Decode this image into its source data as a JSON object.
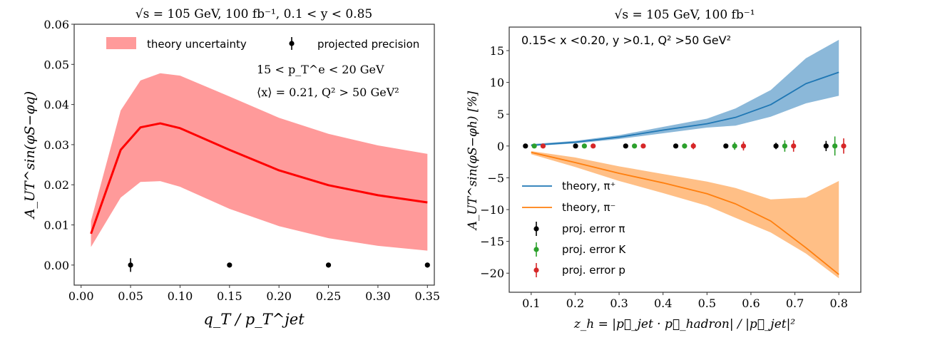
{
  "chart_data": [
    {
      "type": "line",
      "title": "√s = 105 GeV, 100 fb⁻¹, 0.1 < y < 0.85",
      "xlabel": "q_T / p_T^jet",
      "ylabel": "A_UT^sin(φS−φq)",
      "xlim": [
        -0.007,
        0.357
      ],
      "ylim": [
        -0.005,
        0.06
      ],
      "xticks": [
        0.0,
        0.05,
        0.1,
        0.15,
        0.2,
        0.25,
        0.3,
        0.35
      ],
      "xtick_labels": [
        "0.00",
        "0.05",
        "0.10",
        "0.15",
        "0.20",
        "0.25",
        "0.30",
        "0.35"
      ],
      "yticks": [
        0.0,
        0.01,
        0.02,
        0.03,
        0.04,
        0.05,
        0.06
      ],
      "ytick_labels": [
        "0.00",
        "0.01",
        "0.02",
        "0.03",
        "0.04",
        "0.05",
        "0.06"
      ],
      "grid": false,
      "legend": {
        "placement": "top",
        "entries": [
          "theory uncertainty",
          "projected precision"
        ]
      },
      "annotations": [
        "15 < p_T^e < 20 GeV",
        "⟨x⟩ = 0.21, Q² > 50 GeV²"
      ],
      "colors": {
        "band": "#ff9a9a",
        "line": "#ff0000",
        "points": "#000000"
      },
      "theory": {
        "x": [
          0.01,
          0.04,
          0.06,
          0.08,
          0.1,
          0.15,
          0.2,
          0.25,
          0.3,
          0.35
        ],
        "central": [
          0.0078,
          0.0287,
          0.0343,
          0.0353,
          0.0341,
          0.0287,
          0.0236,
          0.0199,
          0.0174,
          0.0156
        ],
        "upper": [
          0.011,
          0.0385,
          0.046,
          0.0478,
          0.0472,
          0.042,
          0.0367,
          0.0327,
          0.0298,
          0.0277
        ],
        "lower": [
          0.0045,
          0.0168,
          0.0207,
          0.0209,
          0.0195,
          0.014,
          0.0097,
          0.0067,
          0.0048,
          0.0036
        ]
      },
      "points": {
        "x": [
          0.05,
          0.15,
          0.25,
          0.35
        ],
        "y": [
          0,
          0,
          0,
          0
        ],
        "err": [
          0.0017,
          0.0006,
          0.0006,
          0.0006
        ]
      }
    },
    {
      "type": "line",
      "title": "√s = 105 GeV, 100 fb⁻¹",
      "xlabel": "z_h = |p⃗_jet · p⃗_hadron| / |p⃗_jet|²",
      "ylabel": "A_UT^sin(φS−φh) [%]",
      "xlim": [
        0.05,
        0.85
      ],
      "ylim": [
        -23,
        18.7
      ],
      "xticks": [
        0.1,
        0.2,
        0.3,
        0.4,
        0.5,
        0.6,
        0.7,
        0.8
      ],
      "xtick_labels": [
        "0.1",
        "0.2",
        "0.3",
        "0.4",
        "0.5",
        "0.6",
        "0.7",
        "0.8"
      ],
      "yticks": [
        -20,
        -15,
        -10,
        -5,
        0,
        5,
        10,
        15
      ],
      "ytick_labels": [
        "−20",
        "−15",
        "−10",
        "−5",
        "0",
        "5",
        "10",
        "15"
      ],
      "grid": false,
      "annotation": "0.15< x <0.20, y >0.1, Q² >50 GeV²",
      "legend": {
        "placement": "lower-left",
        "entries": [
          "theory, π⁺",
          "theory, π⁻",
          "proj. error π",
          "proj. error K",
          "proj. error p"
        ]
      },
      "colors": {
        "pi_plus": "#1f77b4",
        "pi_plus_band": "#8bb8d9",
        "pi_minus": "#ff7f0e",
        "pi_minus_band": "#ffbf86",
        "pi": "#000000",
        "K": "#2ca02c",
        "p": "#d62728"
      },
      "series": [
        {
          "name": "theory, π⁺",
          "x": [
            0.1,
            0.2,
            0.3,
            0.4,
            0.5,
            0.565,
            0.645,
            0.725,
            0.8
          ],
          "central": [
            0.1,
            0.6,
            1.4,
            2.5,
            3.5,
            4.5,
            6.5,
            9.8,
            11.6
          ],
          "upper": [
            0.3,
            0.8,
            1.7,
            3.0,
            4.3,
            5.9,
            8.8,
            13.8,
            16.7
          ],
          "lower": [
            0.0,
            0.4,
            1.1,
            2.0,
            2.9,
            3.2,
            4.6,
            6.7,
            7.9
          ]
        },
        {
          "name": "theory, π⁻",
          "x": [
            0.1,
            0.2,
            0.3,
            0.4,
            0.5,
            0.565,
            0.645,
            0.725,
            0.8
          ],
          "central": [
            -1.0,
            -2.6,
            -4.3,
            -5.8,
            -7.5,
            -9.1,
            -11.8,
            -16.0,
            -20.2
          ],
          "upper": [
            -0.8,
            -1.8,
            -3.2,
            -4.4,
            -5.6,
            -6.6,
            -8.4,
            -8.1,
            -5.5
          ],
          "lower": [
            -1.3,
            -3.3,
            -5.5,
            -7.4,
            -9.4,
            -11.3,
            -13.6,
            -16.9,
            -20.8
          ]
        }
      ],
      "points": [
        {
          "name": "proj. error π",
          "x": [
            0.087,
            0.201,
            0.315,
            0.429,
            0.543,
            0.657,
            0.771
          ],
          "y": [
            0,
            0,
            0,
            0,
            0,
            0,
            0
          ],
          "err": [
            0.1,
            0.1,
            0.1,
            0.2,
            0.3,
            0.5,
            0.8
          ]
        },
        {
          "name": "proj. error K",
          "x": [
            0.107,
            0.221,
            0.335,
            0.449,
            0.563,
            0.677,
            0.791
          ],
          "y": [
            0,
            0,
            0,
            0,
            0,
            0,
            0
          ],
          "err": [
            0.1,
            0.1,
            0.1,
            0.4,
            0.6,
            0.9,
            1.5
          ]
        },
        {
          "name": "proj. error p",
          "x": [
            0.127,
            0.241,
            0.355,
            0.469,
            0.583,
            0.697,
            0.811
          ],
          "y": [
            0,
            0,
            0,
            0,
            0,
            0,
            0
          ],
          "err": [
            0.1,
            0.1,
            0.1,
            0.5,
            0.7,
            0.9,
            1.2
          ]
        }
      ]
    }
  ]
}
